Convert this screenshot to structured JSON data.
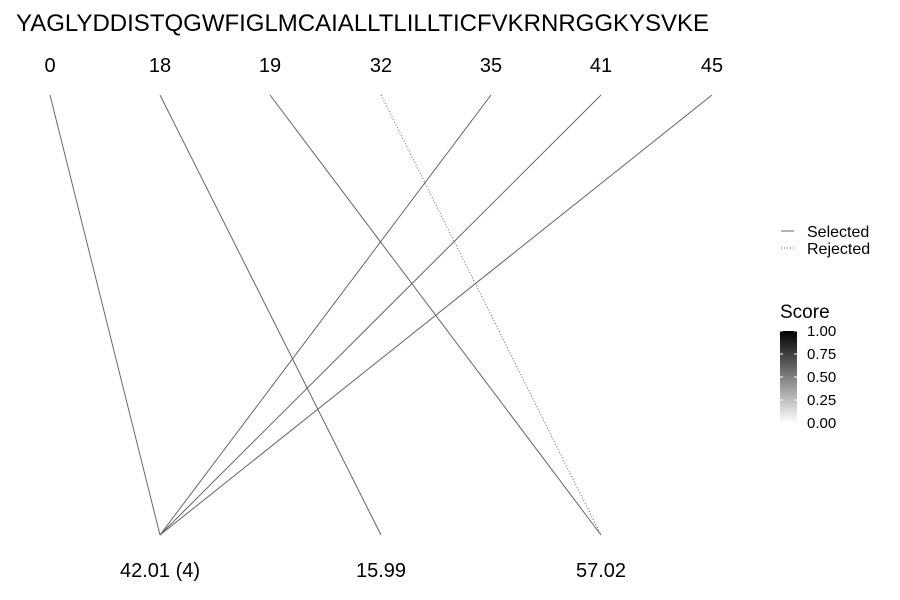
{
  "sequence": "YAGLYDDISTQGWFIGLMCAIALLTLILLTICFVKRNRGGKYSVKE",
  "top_positions": [
    "0",
    "18",
    "19",
    "32",
    "35",
    "41",
    "45"
  ],
  "bottom_nodes": [
    "42.01 (4)",
    "15.99",
    "57.02"
  ],
  "connections": [
    {
      "from": 0,
      "to": 0,
      "status": "Selected",
      "score": 1.0
    },
    {
      "from": 1,
      "to": 1,
      "status": "Selected",
      "score": 1.0
    },
    {
      "from": 2,
      "to": 2,
      "status": "Selected",
      "score": 1.0
    },
    {
      "from": 3,
      "to": 2,
      "status": "Rejected",
      "score": 1.0
    },
    {
      "from": 4,
      "to": 0,
      "status": "Selected",
      "score": 1.0
    },
    {
      "from": 5,
      "to": 0,
      "status": "Selected",
      "score": 1.0
    },
    {
      "from": 6,
      "to": 0,
      "status": "Selected",
      "score": 1.0
    }
  ],
  "legend": {
    "linetype": [
      "Selected",
      "Rejected"
    ],
    "score_title": "Score",
    "score_ticks": [
      "1.00",
      "0.75",
      "0.50",
      "0.25",
      "0.00"
    ],
    "score_range": [
      0,
      1
    ],
    "score_colors": [
      "#000000",
      "#ffffff"
    ]
  },
  "colors": {
    "line": "#666666",
    "text": "#000000"
  }
}
